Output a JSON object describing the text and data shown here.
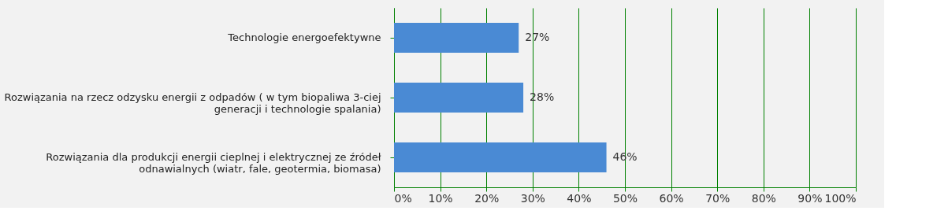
{
  "chart_data": {
    "type": "bar",
    "orientation": "horizontal",
    "categories": [
      "Technologie energoefektywne",
      "Rozwiązania na rzecz odzysku energii z odpadów ( w tym biopaliwa 3-ciej generacji i technologie spalania)",
      "Rozwiązania dla produkcji energii cieplnej i elektrycznej ze źródeł odnawialnych (wiatr, fale, geotermia, biomasa)"
    ],
    "values": [
      27,
      28,
      46
    ],
    "value_labels": [
      "27%",
      "28%",
      "46%"
    ],
    "color": "#4a8ad4",
    "xlim": [
      0,
      100
    ],
    "xticks": [
      {
        "value": 0,
        "label": "0%"
      },
      {
        "value": 10,
        "label": "10%"
      },
      {
        "value": 20,
        "label": "20%"
      },
      {
        "value": 30,
        "label": "30%"
      },
      {
        "value": 40,
        "label": "40%"
      },
      {
        "value": 50,
        "label": "50%"
      },
      {
        "value": 60,
        "label": "60%"
      },
      {
        "value": 70,
        "label": "70%"
      },
      {
        "value": 80,
        "label": "80%"
      },
      {
        "value": 90,
        "label": "90%"
      },
      {
        "value": 100,
        "label": "100%"
      }
    ],
    "grid": "x"
  }
}
